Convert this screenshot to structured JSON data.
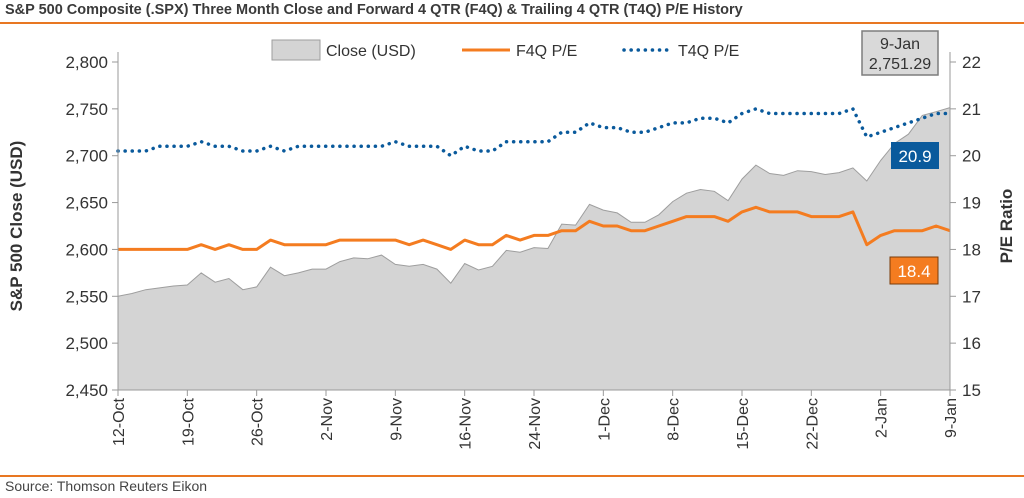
{
  "header": {
    "title": "S&P 500 Composite (.SPX) Three Month Close and Forward 4 QTR (F4Q) & Trailing 4 QTR (T4Q) P/E History"
  },
  "footer": {
    "source": "Source: Thomson Reuters Eikon"
  },
  "colors": {
    "accent": "#e87722",
    "area": "#d4d4d4",
    "area_edge": "#9e9e9e",
    "f4q": "#f47c20",
    "t4q": "#0a5a9c",
    "badge_close": "#d9d9d9"
  },
  "chart_data": {
    "type": "area",
    "title": "S&P 500 Composite (.SPX) Three Month Close and Forward 4 QTR (F4Q) & Trailing 4 QTR (T4Q) P/E History",
    "ylabel_left": "S&P 500 Close (USD)",
    "ylabel_right": "P/E Ratio",
    "ylim_left": [
      2450,
      2800
    ],
    "ylim_right": [
      15,
      22
    ],
    "left_ticks": [
      "2,450",
      "2,500",
      "2,550",
      "2,600",
      "2,650",
      "2,700",
      "2,750",
      "2,800"
    ],
    "right_ticks": [
      "15",
      "16",
      "17",
      "18",
      "19",
      "20",
      "21",
      "22"
    ],
    "x_tick_labels": [
      "12-Oct",
      "19-Oct",
      "26-Oct",
      "2-Nov",
      "9-Nov",
      "16-Nov",
      "24-Nov",
      "1-Dec",
      "8-Dec",
      "15-Dec",
      "22-Dec",
      "2-Jan",
      "9-Jan"
    ],
    "legend_position": "top",
    "x": [
      "12-Oct",
      "13-Oct",
      "16-Oct",
      "17-Oct",
      "18-Oct",
      "19-Oct",
      "20-Oct",
      "23-Oct",
      "24-Oct",
      "25-Oct",
      "26-Oct",
      "27-Oct",
      "30-Oct",
      "31-Oct",
      "1-Nov",
      "2-Nov",
      "3-Nov",
      "6-Nov",
      "7-Nov",
      "8-Nov",
      "9-Nov",
      "10-Nov",
      "13-Nov",
      "14-Nov",
      "15-Nov",
      "16-Nov",
      "17-Nov",
      "20-Nov",
      "21-Nov",
      "22-Nov",
      "24-Nov",
      "27-Nov",
      "28-Nov",
      "29-Nov",
      "30-Nov",
      "1-Dec",
      "4-Dec",
      "5-Dec",
      "6-Dec",
      "7-Dec",
      "8-Dec",
      "11-Dec",
      "12-Dec",
      "13-Dec",
      "14-Dec",
      "15-Dec",
      "18-Dec",
      "19-Dec",
      "20-Dec",
      "21-Dec",
      "22-Dec",
      "26-Dec",
      "27-Dec",
      "28-Dec",
      "29-Dec",
      "2-Jan",
      "3-Jan",
      "4-Jan",
      "5-Jan",
      "8-Jan",
      "9-Jan"
    ],
    "series": [
      {
        "name": "Close (USD)",
        "style": "area",
        "values": [
          2550,
          2553,
          2557,
          2559,
          2561,
          2562,
          2575,
          2565,
          2569,
          2557,
          2560,
          2581,
          2572,
          2575,
          2579,
          2579,
          2587,
          2591,
          2590,
          2594,
          2584,
          2582,
          2584,
          2579,
          2564,
          2585,
          2578,
          2582,
          2599,
          2597,
          2602,
          2601,
          2627,
          2626,
          2648,
          2642,
          2639,
          2629,
          2629,
          2637,
          2651,
          2660,
          2664,
          2662,
          2652,
          2675,
          2690,
          2681,
          2679,
          2684,
          2683,
          2680,
          2682,
          2687,
          2673,
          2695,
          2713,
          2723,
          2743,
          2747,
          2751.29
        ]
      },
      {
        "name": "F4Q P/E",
        "style": "line",
        "values": [
          18,
          18,
          18,
          18,
          18,
          18,
          18.1,
          18,
          18.1,
          18,
          18,
          18.2,
          18.1,
          18.1,
          18.1,
          18.1,
          18.2,
          18.2,
          18.2,
          18.2,
          18.2,
          18.1,
          18.2,
          18.1,
          18,
          18.2,
          18.1,
          18.1,
          18.3,
          18.2,
          18.3,
          18.3,
          18.4,
          18.4,
          18.6,
          18.5,
          18.5,
          18.4,
          18.4,
          18.5,
          18.6,
          18.7,
          18.7,
          18.7,
          18.6,
          18.8,
          18.9,
          18.8,
          18.8,
          18.8,
          18.7,
          18.7,
          18.7,
          18.8,
          18.1,
          18.3,
          18.4,
          18.4,
          18.4,
          18.5,
          18.4
        ]
      },
      {
        "name": "T4Q P/E",
        "style": "dotted",
        "values": [
          20.1,
          20.1,
          20.1,
          20.2,
          20.2,
          20.2,
          20.3,
          20.2,
          20.2,
          20.1,
          20.1,
          20.2,
          20.1,
          20.2,
          20.2,
          20.2,
          20.2,
          20.2,
          20.2,
          20.2,
          20.3,
          20.2,
          20.2,
          20.2,
          20,
          20.2,
          20.1,
          20.1,
          20.3,
          20.3,
          20.3,
          20.3,
          20.5,
          20.5,
          20.7,
          20.6,
          20.6,
          20.5,
          20.5,
          20.6,
          20.7,
          20.7,
          20.8,
          20.8,
          20.7,
          20.9,
          21,
          20.9,
          20.9,
          20.9,
          20.9,
          20.9,
          20.9,
          21,
          20.4,
          20.5,
          20.6,
          20.7,
          20.8,
          20.9,
          20.9
        ]
      }
    ],
    "annotations": {
      "close_badge_date": "9-Jan",
      "close_badge_value": "2,751.29",
      "t4q_badge": "20.9",
      "f4q_badge": "18.4"
    }
  }
}
